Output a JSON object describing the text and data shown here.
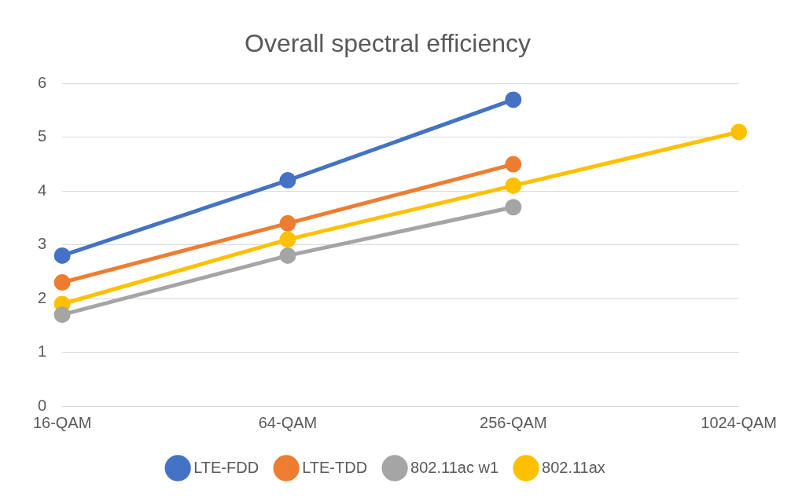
{
  "chart_data": {
    "type": "line",
    "title": "Overall spectral efficiency",
    "categories": [
      "16-QAM",
      "64-QAM",
      "256-QAM",
      "1024-QAM"
    ],
    "series": [
      {
        "name": "LTE-FDD",
        "color": "#4472c4",
        "values": [
          2.8,
          4.2,
          5.7,
          null
        ]
      },
      {
        "name": "LTE-TDD",
        "color": "#ed7d31",
        "values": [
          2.3,
          3.4,
          4.5,
          null
        ]
      },
      {
        "name": "802.11ac w1",
        "color": "#a5a5a5",
        "values": [
          1.7,
          2.8,
          3.7,
          null
        ]
      },
      {
        "name": "802.11ax",
        "color": "#ffc000",
        "values": [
          1.9,
          3.1,
          4.1,
          5.1
        ]
      }
    ],
    "ylim": [
      0,
      6
    ],
    "yticks": [
      0,
      1,
      2,
      3,
      4,
      5,
      6
    ],
    "grid": "y",
    "legend": "bottom",
    "marker": "circle",
    "line_style": "solid"
  }
}
